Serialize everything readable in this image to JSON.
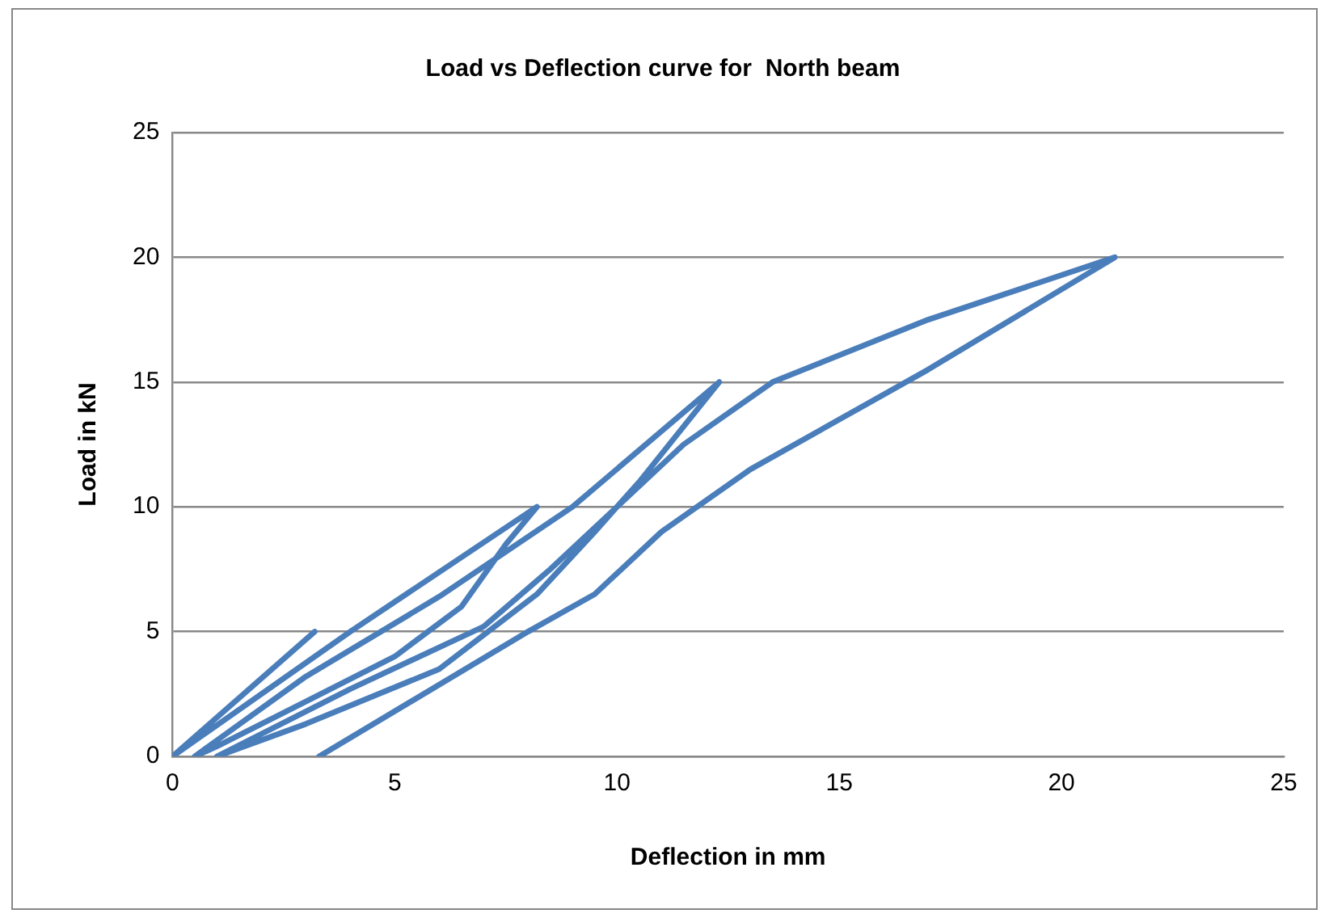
{
  "chart_data": {
    "type": "line",
    "title": "Load vs Deflection curve for  North beam",
    "xlabel": "Deflection in mm",
    "ylabel": "Load in kN",
    "series": [
      {
        "color": "#4a7ebb",
        "x": [
          0,
          3.2,
          0,
          4,
          8.2,
          7.5,
          6.5,
          5,
          3,
          1,
          0.5,
          3,
          6,
          9,
          12.3,
          10.5,
          9.5,
          8.2,
          6,
          3,
          1,
          4,
          7,
          8.5,
          10,
          11.5,
          13.5,
          17,
          21.2,
          17,
          13,
          11,
          9.5,
          8,
          3.3
        ],
        "values": [
          0,
          5,
          0,
          5,
          10,
          8.5,
          6,
          4,
          2.2,
          0.4,
          0,
          3.2,
          6.4,
          10,
          15,
          11,
          9,
          6.5,
          3.5,
          1.3,
          0,
          2.7,
          5.2,
          7.5,
          10,
          12.5,
          15,
          17.5,
          20,
          15.5,
          11.5,
          9,
          6.5,
          5,
          0
        ]
      }
    ],
    "xlim": [
      0,
      25
    ],
    "xticks": [
      0,
      5,
      10,
      15,
      20,
      25
    ],
    "ylim": [
      0,
      25
    ],
    "yticks": [
      0,
      5,
      10,
      15,
      20,
      25
    ],
    "grid": "y",
    "legend": false,
    "marker": "none",
    "line_style": "solid"
  }
}
